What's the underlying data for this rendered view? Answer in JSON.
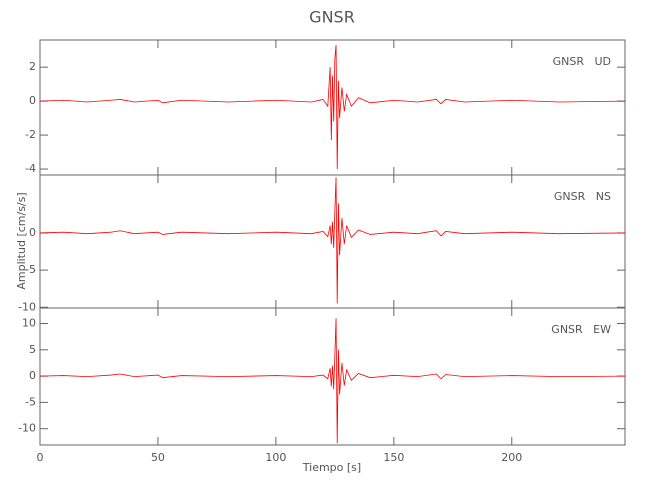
{
  "chart_data": [
    {
      "type": "line",
      "title": "GNSR",
      "label": "GNSR   UD",
      "color": "#ff0000",
      "x": [
        0,
        10,
        20,
        30,
        34,
        40,
        50,
        52,
        60,
        80,
        100,
        115,
        120,
        122,
        123,
        123.5,
        124,
        124.5,
        125,
        125.5,
        126,
        126.5,
        127,
        128,
        129,
        130,
        132,
        135,
        140,
        150,
        160,
        168,
        170,
        172,
        180,
        200,
        220,
        248
      ],
      "values": [
        0,
        0.05,
        -0.05,
        0.05,
        0.1,
        -0.05,
        0.05,
        -0.1,
        0.05,
        -0.05,
        0.05,
        -0.05,
        0.1,
        -0.3,
        2,
        -2.3,
        1.5,
        -1.2,
        2.5,
        3.3,
        -4,
        1.2,
        -1,
        0.8,
        -0.6,
        0.4,
        -0.3,
        0.2,
        -0.1,
        0.05,
        -0.05,
        0.1,
        -0.15,
        0.1,
        -0.05,
        0.05,
        -0.05,
        0
      ],
      "xlim": [
        0,
        248
      ],
      "xticks": [
        0,
        50,
        100,
        150,
        200
      ],
      "ylim": [
        -4.35,
        3.6
      ],
      "yticks": [
        -4,
        -2,
        0,
        2
      ]
    },
    {
      "type": "line",
      "label": "GNSR   NS",
      "ylabel": "Amplitud [cm/s/s]",
      "color": "#ff0000",
      "x": [
        0,
        10,
        20,
        30,
        34,
        40,
        50,
        52,
        60,
        80,
        100,
        115,
        120,
        122,
        123,
        123.5,
        124,
        124.5,
        125,
        125.5,
        126,
        126.5,
        127,
        128,
        129,
        130,
        132,
        135,
        140,
        150,
        160,
        168,
        170,
        172,
        180,
        200,
        220,
        248
      ],
      "values": [
        0,
        0.1,
        -0.1,
        0.1,
        0.3,
        -0.1,
        0.1,
        -0.2,
        0.1,
        -0.1,
        0.1,
        -0.1,
        0.2,
        -0.5,
        1,
        -1.5,
        1.5,
        -2,
        3,
        7.5,
        -9.5,
        4,
        -3,
        2,
        -1.5,
        1,
        -0.6,
        0.4,
        -0.2,
        0.1,
        -0.1,
        0.3,
        -0.4,
        0.2,
        -0.1,
        0.1,
        -0.1,
        0
      ],
      "xlim": [
        0,
        248
      ],
      "xticks": [
        0,
        50,
        100,
        150,
        200
      ],
      "ylim": [
        -10.1,
        7.8
      ],
      "yticks": [
        -10,
        -5,
        0
      ]
    },
    {
      "type": "line",
      "label": "GNSR   EW",
      "xlabel": "Tiempo [s]",
      "color": "#ff0000",
      "x": [
        0,
        10,
        20,
        30,
        34,
        40,
        50,
        52,
        60,
        80,
        100,
        115,
        120,
        122,
        123,
        123.5,
        124,
        124.5,
        125,
        125.5,
        126,
        126.5,
        127,
        128,
        129,
        130,
        132,
        135,
        140,
        150,
        160,
        168,
        170,
        172,
        180,
        200,
        220,
        248
      ],
      "values": [
        0,
        0.1,
        -0.1,
        0.2,
        0.4,
        -0.1,
        0.2,
        -0.3,
        0.1,
        -0.1,
        0.1,
        -0.1,
        0.2,
        -0.5,
        1.5,
        -2,
        2,
        -2.5,
        4,
        11,
        -12.8,
        5,
        -3.5,
        2.5,
        -1.8,
        1.2,
        -0.8,
        0.5,
        -0.3,
        0.15,
        -0.1,
        0.4,
        -0.5,
        0.3,
        -0.1,
        0.1,
        -0.1,
        0
      ],
      "xlim": [
        0,
        248
      ],
      "xticks": [
        0,
        50,
        100,
        150,
        200
      ],
      "ylim": [
        -13.1,
        12.95
      ],
      "yticks": [
        -10,
        -5,
        0,
        5,
        10
      ]
    }
  ]
}
